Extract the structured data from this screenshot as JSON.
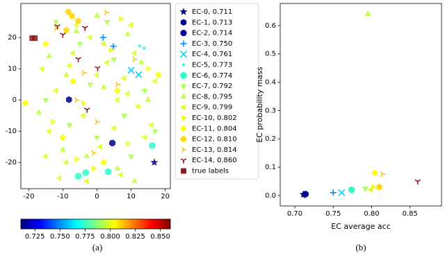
{
  "chart_data": [
    {
      "type": "scatter",
      "caption": "(a)",
      "xlim": [
        -22.3,
        21.5
      ],
      "ylim": [
        -28.4,
        30.9
      ],
      "xticks": [
        -20,
        -10,
        0,
        10,
        20
      ],
      "yticks": [
        -20,
        -10,
        0,
        10,
        20
      ],
      "grid": false,
      "legend": "outside right",
      "colorbar": {
        "lim": [
          0.711,
          0.86
        ],
        "ticks": [
          0.725,
          {
            "value": 0.75,
            "label": "0.750"
          },
          0.775,
          {
            "value": 0.8,
            "label": "0.800"
          },
          0.825,
          {
            "value": 0.85,
            "label": "0.850"
          }
        ]
      },
      "series": [
        {
          "name": "EC-0, 0.711",
          "color": "#00007f",
          "marker": "star",
          "x": [
            16.8
          ],
          "values": [
            -20
          ]
        },
        {
          "name": "EC-1, 0.713",
          "color": "#00008a",
          "marker": "hexagon",
          "x": [
            -8.2
          ],
          "values": [
            0.1
          ]
        },
        {
          "name": "EC-2, 0.714",
          "color": "#000094",
          "marker": "octagon",
          "x": [
            4.5
          ],
          "values": [
            -13.8
          ]
        },
        {
          "name": "EC-3, 0.750",
          "color": "#0090ff",
          "marker": "plus",
          "x": [
            1.8,
            4.8
          ],
          "values": [
            20,
            17.2
          ]
        },
        {
          "name": "EC-4, 0.761",
          "color": "#00d4ff",
          "marker": "x",
          "x": [
            10,
            12.2
          ],
          "values": [
            9.5,
            8.1
          ]
        },
        {
          "name": "EC-5, 0.773",
          "color": "#29ffce",
          "marker": "point",
          "x": [
            12.5,
            13.8
          ],
          "values": [
            17.3,
            16.6
          ]
        },
        {
          "name": "EC-6, 0.774",
          "color": "#2cffca",
          "marker": "circle",
          "x": [
            -5.5,
            -3.3,
            3.3,
            16.2
          ],
          "values": [
            -24.4,
            -23.3,
            -23,
            -14.6
          ]
        },
        {
          "name": "EC-7, 0.792",
          "color": "#adff53",
          "marker": "tri-down",
          "x": [
            -12,
            -5,
            3,
            8,
            -15,
            0,
            10,
            -8,
            14,
            5,
            -2,
            17
          ],
          "values": [
            25,
            18,
            25,
            -5,
            0,
            -12,
            -18,
            -8,
            3,
            13,
            5,
            -10
          ]
        },
        {
          "name": "EC-8, 0.795",
          "color": "#c1ff3e",
          "marker": "tri-up",
          "x": [
            -14,
            -6,
            2,
            9,
            -10,
            6,
            -3,
            15,
            11,
            -17,
            0,
            -9,
            13
          ],
          "values": [
            14,
            22,
            4,
            21,
            -16,
            -22,
            -18,
            0,
            -26,
            -4,
            27,
            8,
            12
          ]
        },
        {
          "name": "EC-9, 0.799",
          "color": "#dcff23",
          "marker": "tri-left",
          "x": [
            -16,
            -12,
            -7,
            -2,
            3,
            8,
            12,
            17,
            -14,
            -9,
            -4,
            1,
            6,
            11,
            16,
            -11,
            -6,
            0,
            5,
            10,
            -15,
            -3,
            7,
            14,
            -8,
            2,
            9
          ],
          "values": [
            10,
            3,
            15,
            20,
            12,
            7,
            -2,
            6,
            -10,
            -20,
            -5,
            -15,
            0,
            15,
            -8,
            -25,
            24,
            8,
            -9,
            24,
            -18,
            -26,
            -24,
            -12,
            11,
            18,
            2
          ]
        },
        {
          "name": "EC-10, 0.802",
          "color": "#f0ff0e",
          "marker": "tri-right",
          "x": [
            -13,
            -4,
            4,
            9,
            -6,
            15,
            -1,
            7
          ],
          "values": [
            -7,
            -1,
            16,
            -14,
            -19,
            10,
            -22,
            26
          ]
        },
        {
          "name": "EC-11, 0.804",
          "color": "#feff00",
          "marker": "diamond",
          "x": [
            -21,
            -15,
            -7,
            2,
            18,
            -10,
            6
          ],
          "values": [
            -1,
            18,
            6,
            -20,
            8,
            -12,
            3
          ]
        },
        {
          "name": "EC-12, 0.810",
          "color": "#ffd700",
          "marker": "pentagon",
          "x": [
            -8.4,
            -7.3,
            -5.5,
            -9
          ],
          "values": [
            28.2,
            26.9,
            25.3,
            22.4
          ]
        },
        {
          "name": "EC-13, 0.814",
          "color": "#ffbb00",
          "marker": "tri-right-line",
          "x": [
            2.7,
            -12,
            -3.9,
            0,
            6,
            -1,
            11,
            -6
          ],
          "values": [
            28,
            23,
            8.7,
            -7,
            5,
            -17,
            13,
            0
          ]
        },
        {
          "name": "EC-14, 0.860",
          "color": "#7f0000",
          "marker": "tri-down-line",
          "x": [
            -11.6,
            -10,
            -3.5,
            -5.5,
            0.2,
            -2.9
          ],
          "values": [
            23.6,
            20.9,
            23.1,
            13.1,
            10.2,
            -3.1
          ]
        },
        {
          "name": "true labels",
          "color": "#8b1a1a",
          "marker": "square",
          "x": [
            -19,
            -18.2
          ],
          "values": [
            19.8,
            19.8
          ]
        }
      ]
    },
    {
      "type": "scatter",
      "caption": "(b)",
      "xlabel": "EC average acc",
      "ylabel": "EC probability mass",
      "xlim": [
        0.681,
        0.891
      ],
      "ylim": [
        -0.037,
        0.678
      ],
      "xticks": [
        {
          "value": 0.7,
          "label": "0.70"
        },
        0.75,
        {
          "value": 0.8,
          "label": "0.80"
        },
        0.85
      ],
      "yticks": [
        {
          "value": 0,
          "label": "0.0"
        },
        0.1,
        0.2,
        0.3,
        0.4,
        0.5,
        0.6
      ],
      "grid": false,
      "x": [
        0.711,
        0.713,
        0.714,
        0.75,
        0.761,
        0.773,
        0.774,
        0.792,
        0.795,
        0.799,
        0.802,
        0.804,
        0.81,
        0.814,
        0.86
      ],
      "values": [
        0.004,
        0.003,
        0.005,
        0.01,
        0.01,
        0.02,
        0.02,
        0.025,
        0.64,
        0.02,
        0.03,
        0.08,
        0.03,
        0.075,
        0.05
      ]
    }
  ]
}
